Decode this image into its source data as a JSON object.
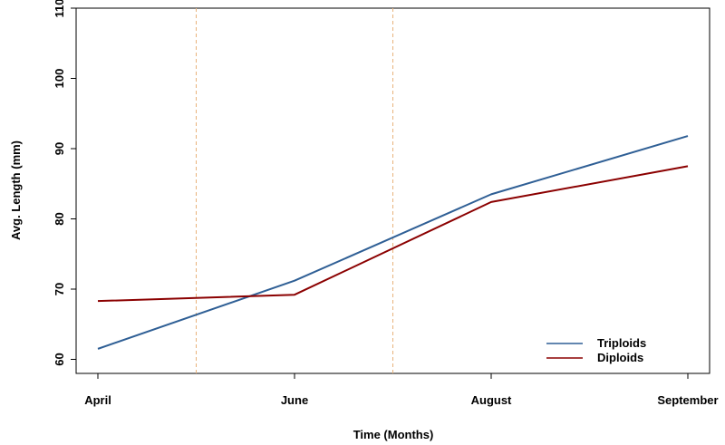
{
  "chart_data": {
    "type": "line",
    "title": "",
    "xlabel": "Time (Months)",
    "ylabel": "Avg. Length (mm)",
    "categories": [
      "April",
      "June",
      "August",
      "September"
    ],
    "ylim": [
      58,
      110
    ],
    "yticks": [
      60,
      70,
      80,
      90,
      100,
      110
    ],
    "grid": false,
    "legend_position": "bottom-right",
    "series": [
      {
        "name": "Triploids",
        "color": "#2f5f95",
        "values": [
          61.5,
          71.2,
          83.5,
          91.8
        ]
      },
      {
        "name": "Diploids",
        "color": "#8b0000",
        "values": [
          68.3,
          69.2,
          82.4,
          87.5
        ]
      }
    ],
    "vertical_markers": [
      0.5,
      1.5
    ],
    "vertical_marker_color": "#e8b27a"
  }
}
